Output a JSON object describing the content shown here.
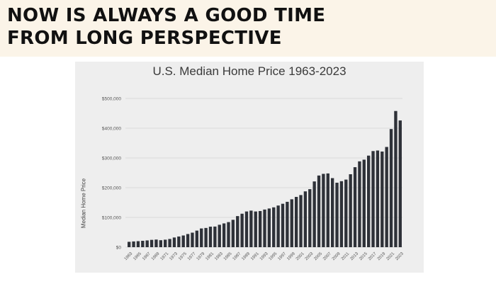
{
  "slide": {
    "headline_line1": "NOW IS ALWAYS A GOOD TIME",
    "headline_line2": "FROM LONG PERSPECTIVE"
  },
  "chart_data": {
    "type": "bar",
    "title": "U.S. Median Home Price 1963-2023",
    "xlabel": "",
    "ylabel": "Median Home Price",
    "ylim": [
      0,
      500000
    ],
    "yticks": [
      0,
      100000,
      200000,
      300000,
      400000,
      500000
    ],
    "ytick_labels": [
      "$0",
      "$100,000",
      "$200,000",
      "$300,000",
      "$400,000",
      "$500,000"
    ],
    "xtick_labels": [
      "1963",
      "1965",
      "1967",
      "1969",
      "1971",
      "1973",
      "1975",
      "1977",
      "1979",
      "1981",
      "1983",
      "1985",
      "1987",
      "1989",
      "1991",
      "1993",
      "1995",
      "1997",
      "1999",
      "2001",
      "2003",
      "2005",
      "2007",
      "2009",
      "2011",
      "2013",
      "2015",
      "2017",
      "2019",
      "2021",
      "2023"
    ],
    "grid": true,
    "bar_color": "#2e3138",
    "categories": [
      "1963",
      "1964",
      "1965",
      "1966",
      "1967",
      "1968",
      "1969",
      "1970",
      "1971",
      "1972",
      "1973",
      "1974",
      "1975",
      "1976",
      "1977",
      "1978",
      "1979",
      "1980",
      "1981",
      "1982",
      "1983",
      "1984",
      "1985",
      "1986",
      "1987",
      "1988",
      "1989",
      "1990",
      "1991",
      "1992",
      "1993",
      "1994",
      "1995",
      "1996",
      "1997",
      "1998",
      "1999",
      "2000",
      "2001",
      "2002",
      "2003",
      "2004",
      "2005",
      "2006",
      "2007",
      "2008",
      "2009",
      "2010",
      "2011",
      "2012",
      "2013",
      "2014",
      "2015",
      "2016",
      "2017",
      "2018",
      "2019",
      "2020",
      "2021",
      "2022",
      "2023"
    ],
    "values": [
      18000,
      19300,
      20200,
      21400,
      22700,
      24600,
      25600,
      23400,
      25200,
      27600,
      32500,
      35900,
      39300,
      44200,
      48800,
      55700,
      62900,
      64600,
      68900,
      69300,
      75300,
      79900,
      84300,
      92000,
      104500,
      112500,
      120000,
      122900,
      120000,
      121500,
      126500,
      130000,
      133900,
      140000,
      146000,
      152500,
      161000,
      169000,
      175200,
      187600,
      195000,
      221000,
      240900,
      246500,
      247900,
      232100,
      216700,
      221800,
      227200,
      245200,
      268900,
      288500,
      294200,
      307800,
      323100,
      325000,
      321500,
      336900,
      397100,
      457800,
      426000
    ]
  }
}
